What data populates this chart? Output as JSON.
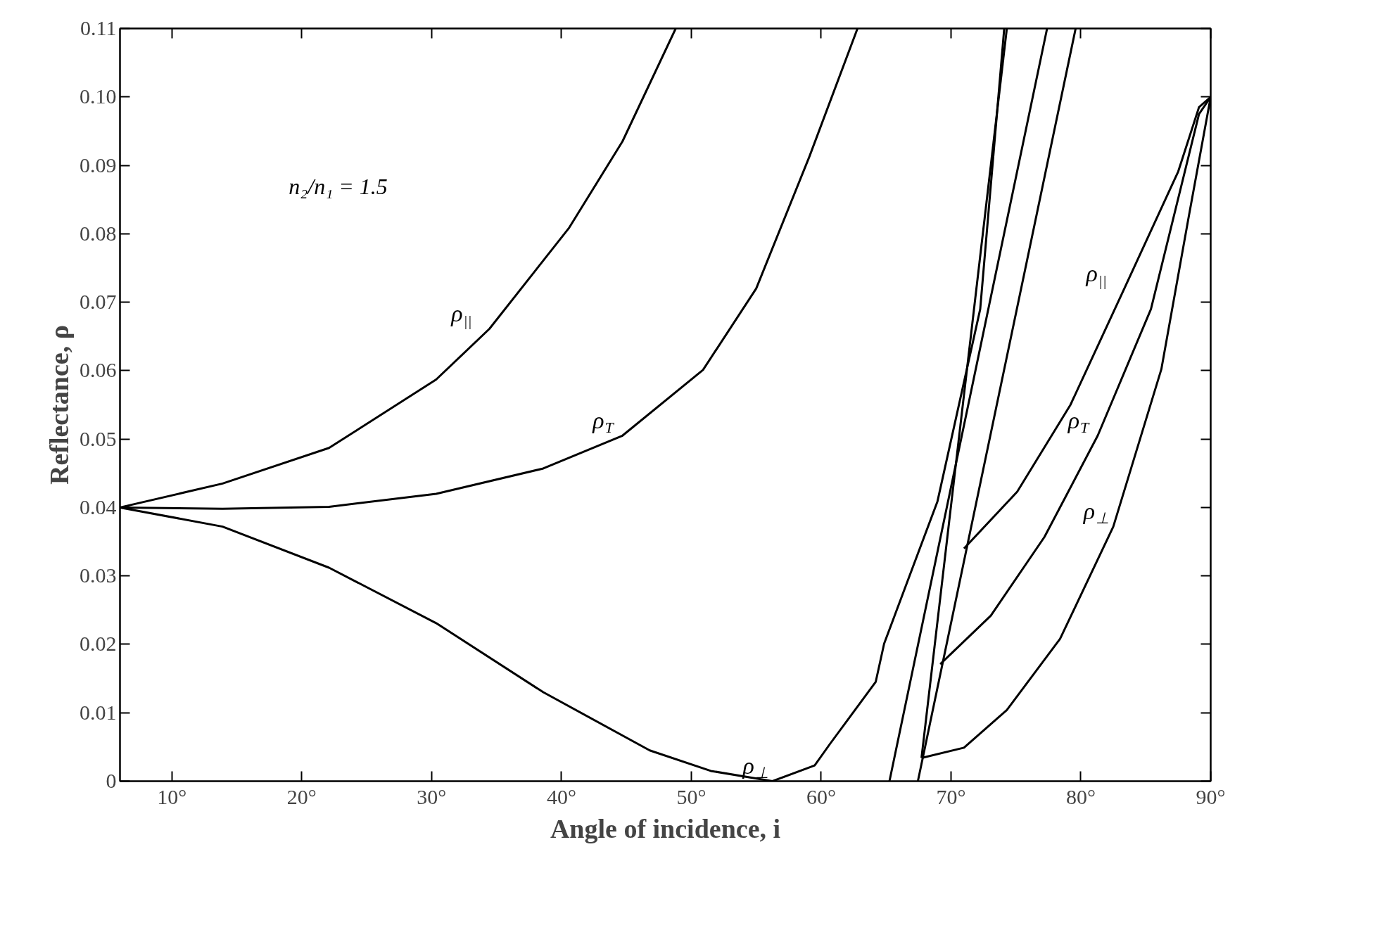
{
  "chart_data": {
    "type": "line",
    "xlabel": "Angle of incidence, i",
    "ylabel": "Reflectance, ρ",
    "xlim": [
      6,
      90
    ],
    "ylim": [
      0,
      0.11
    ],
    "xticks": [
      {
        "value": 10,
        "label": "10°"
      },
      {
        "value": 20,
        "label": "20°"
      },
      {
        "value": 30,
        "label": "30°"
      },
      {
        "value": 40,
        "label": "40°"
      },
      {
        "value": 50,
        "label": "50°"
      },
      {
        "value": 60,
        "label": "60°"
      },
      {
        "value": 70,
        "label": "70°"
      },
      {
        "value": 80,
        "label": "80°"
      },
      {
        "value": 90,
        "label": "90°"
      }
    ],
    "yticks": [
      0,
      0.01,
      0.02,
      0.03,
      0.04,
      0.05,
      0.06,
      0.07,
      0.08,
      0.09,
      {
        "value": 0.1,
        "label": "0.10"
      },
      0.11
    ],
    "grid": false,
    "line_style": "solid",
    "marker": "none",
    "series": [
      {
        "name": "ρ$_{||}$",
        "color": "#000000",
        "x": [
          6,
          13.9,
          22.1,
          30.35,
          34.45,
          40.6,
          44.7,
          48.8
        ],
        "values": [
          0.04,
          0.0435,
          0.0487,
          0.0587,
          0.0661,
          0.0809,
          0.0935,
          0.11
        ]
      },
      {
        "name": "ρ$_{T}$",
        "color": "#000000",
        "x": [
          6,
          13.9,
          22.1,
          30.35,
          38.6,
          44.7,
          50.9,
          55.0,
          59.1,
          62.8
        ],
        "values": [
          0.04,
          0.0398,
          0.0401,
          0.042,
          0.0457,
          0.0505,
          0.0601,
          0.072,
          0.0913,
          0.11
        ]
      },
      {
        "name": "ρ$_{⊥}$",
        "color": "#000000",
        "x": [
          6,
          13.9,
          22.1,
          30.35,
          38.6,
          46.8,
          51.5,
          56.25,
          59.5,
          60.7,
          64.2,
          64.85,
          68.96,
          72.25,
          74.1
        ],
        "values": [
          0.04,
          0.0372,
          0.0312,
          0.0231,
          0.013,
          0.0045,
          0.0015,
          0.0,
          0.0023,
          0.0055,
          0.0145,
          0.0201,
          0.0409,
          0.069,
          0.11
        ]
      },
      {
        "name": "ρ$_{||}$",
        "color": "#000000",
        "x": [
          71.0,
          75.1,
          79.2,
          83.35,
          87.5,
          89.1,
          90
        ],
        "values": [
          0.034,
          0.0423,
          0.055,
          0.072,
          0.0891,
          0.0985,
          0.1
        ]
      },
      {
        "name": "ρ$_{T}$",
        "color": "#000000",
        "x": [
          69.17,
          73.07,
          77.2,
          81.3,
          85.4,
          89.1,
          90
        ],
        "values": [
          0.0171,
          0.0242,
          0.0357,
          0.0505,
          0.069,
          0.0975,
          0.1
        ]
      },
      {
        "name": "ρ$_{⊥}$",
        "color": "#000000",
        "x": [
          67.73,
          71.0,
          74.3,
          78.4,
          82.5,
          86.2,
          88.3,
          90
        ],
        "values": [
          0.0034,
          0.0049,
          0.0104,
          0.0208,
          0.0372,
          0.0602,
          0.0824,
          0.1
        ]
      },
      {
        "color": "#000000",
        "x": [
          67.73,
          74.3
        ],
        "values": [
          0.0034,
          0.11
        ]
      },
      {
        "color": "#000000",
        "x": [
          65.26,
          77.4
        ],
        "values": [
          0,
          0.11
        ]
      },
      {
        "color": "#000000",
        "x": [
          67.45,
          79.6
        ],
        "values": [
          0,
          0.11
        ]
      }
    ],
    "annotations": [
      "n₂/n₁ = 1.5"
    ]
  }
}
